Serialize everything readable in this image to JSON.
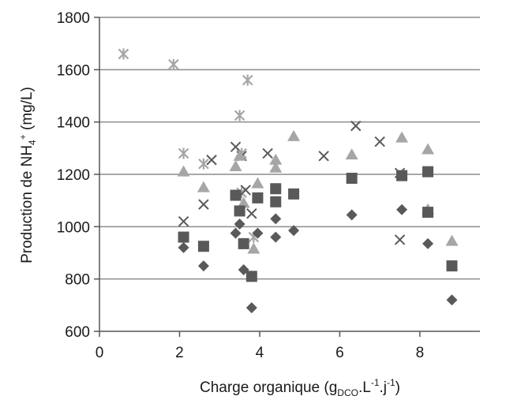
{
  "chart_data": {
    "type": "scatter",
    "title": "",
    "xlabel": {
      "main": "Charge organique (g",
      "sub": "DCO",
      "mid": ".L",
      "sup1": "-1",
      "mid2": ".j",
      "sup2": "-1",
      "end": ")"
    },
    "ylabel": {
      "main": "Production de NH",
      "sub": "4",
      "sup": "+",
      "end": " (mg/L)"
    },
    "xlim": [
      0,
      9.5
    ],
    "ylim": [
      600,
      1800
    ],
    "xticks": [
      0,
      2,
      4,
      6,
      8
    ],
    "yticks": [
      600,
      800,
      1000,
      1200,
      1400,
      1600,
      1800
    ],
    "grid": "horizontal",
    "legend": "none",
    "series": [
      {
        "marker": "star",
        "color": "#a6a6a6",
        "points": [
          [
            0.6,
            1660
          ],
          [
            1.85,
            1620
          ],
          [
            2.1,
            1280
          ],
          [
            2.6,
            1240
          ],
          [
            3.5,
            1425
          ],
          [
            3.55,
            1280
          ],
          [
            3.55,
            1130
          ],
          [
            3.7,
            1560
          ],
          [
            3.85,
            960
          ]
        ]
      },
      {
        "marker": "x",
        "color": "#595959",
        "points": [
          [
            2.1,
            1020
          ],
          [
            2.6,
            1085
          ],
          [
            2.8,
            1255
          ],
          [
            3.4,
            1305
          ],
          [
            3.55,
            1270
          ],
          [
            3.65,
            1140
          ],
          [
            3.8,
            1050
          ],
          [
            4.2,
            1280
          ],
          [
            5.6,
            1270
          ],
          [
            6.4,
            1385
          ],
          [
            7.0,
            1325
          ],
          [
            7.5,
            1205
          ],
          [
            7.5,
            950
          ]
        ]
      },
      {
        "marker": "triangle",
        "color": "#a6a6a6",
        "points": [
          [
            2.1,
            1210
          ],
          [
            2.6,
            1150
          ],
          [
            3.4,
            1230
          ],
          [
            3.5,
            1270
          ],
          [
            3.6,
            1090
          ],
          [
            3.85,
            915
          ],
          [
            3.95,
            1165
          ],
          [
            4.4,
            1255
          ],
          [
            4.4,
            1225
          ],
          [
            4.85,
            1345
          ],
          [
            6.3,
            1275
          ],
          [
            7.55,
            1340
          ],
          [
            8.2,
            1295
          ],
          [
            8.2,
            1065
          ],
          [
            8.8,
            945
          ]
        ]
      },
      {
        "marker": "square",
        "color": "#595959",
        "points": [
          [
            2.1,
            960
          ],
          [
            2.6,
            925
          ],
          [
            3.4,
            1120
          ],
          [
            3.5,
            1060
          ],
          [
            3.6,
            935
          ],
          [
            3.8,
            810
          ],
          [
            3.95,
            1110
          ],
          [
            4.4,
            1145
          ],
          [
            4.4,
            1095
          ],
          [
            4.85,
            1125
          ],
          [
            6.3,
            1185
          ],
          [
            7.55,
            1195
          ],
          [
            8.2,
            1210
          ],
          [
            8.2,
            1055
          ],
          [
            8.8,
            850
          ]
        ]
      },
      {
        "marker": "diamond",
        "color": "#595959",
        "points": [
          [
            2.1,
            920
          ],
          [
            2.6,
            850
          ],
          [
            3.4,
            975
          ],
          [
            3.5,
            1010
          ],
          [
            3.6,
            835
          ],
          [
            3.8,
            690
          ],
          [
            3.95,
            975
          ],
          [
            4.4,
            1030
          ],
          [
            4.4,
            960
          ],
          [
            4.85,
            985
          ],
          [
            6.3,
            1045
          ],
          [
            7.55,
            1065
          ],
          [
            8.2,
            935
          ],
          [
            8.8,
            720
          ]
        ]
      }
    ]
  }
}
